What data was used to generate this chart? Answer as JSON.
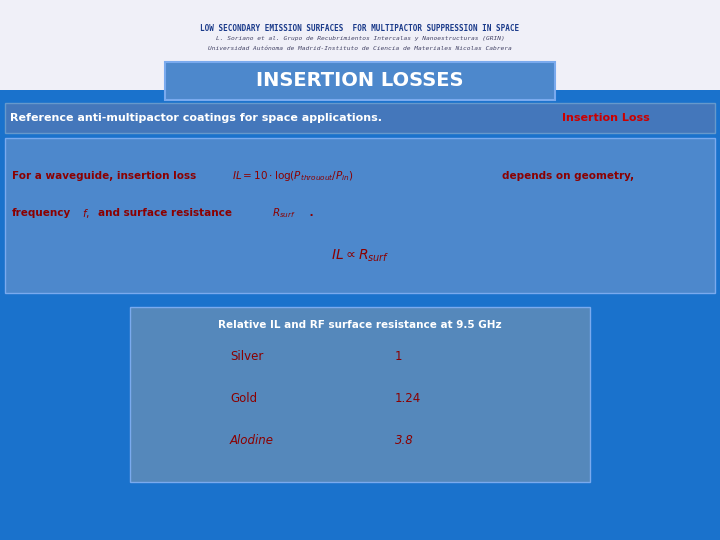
{
  "bg_color": "#1a72cc",
  "header_bg": "#f0f0f8",
  "title_text": "INSERTION LOSSES",
  "title_box_color": "#5599dd",
  "title_text_color": "#ffffff",
  "ref_text": "Reference anti-multipactor coatings for space applications.",
  "ref_highlight": "Insertion Loss",
  "ref_highlight_color": "#cc0000",
  "ref_text_color": "#ffffff",
  "formula_text_color": "#8b0000",
  "table_header": "Relative IL and RF surface resistance at 9.5 GHz",
  "table_header_color": "#ffffff",
  "table_rows": [
    [
      "Silver",
      "1"
    ],
    [
      "Gold",
      "1.24"
    ],
    [
      "Alodine",
      "3.8"
    ]
  ],
  "table_text_color": "#8b0000",
  "header_title": "LOW SECONDARY EMISSION SURFACES  FOR MULTIPACTOR SUPPRESSION IN SPACE",
  "header_line2": "L. Soriano et al. Grupo de Recubrimientos Intercalas y Nanoestructuras (GRIN)",
  "header_line3": "Universidad Autónoma de Madrid-Instituto de Ciencia de Materiales Nicolas Cabrera",
  "header_title_color": "#1a3a8a",
  "header_sub_color": "#444466"
}
